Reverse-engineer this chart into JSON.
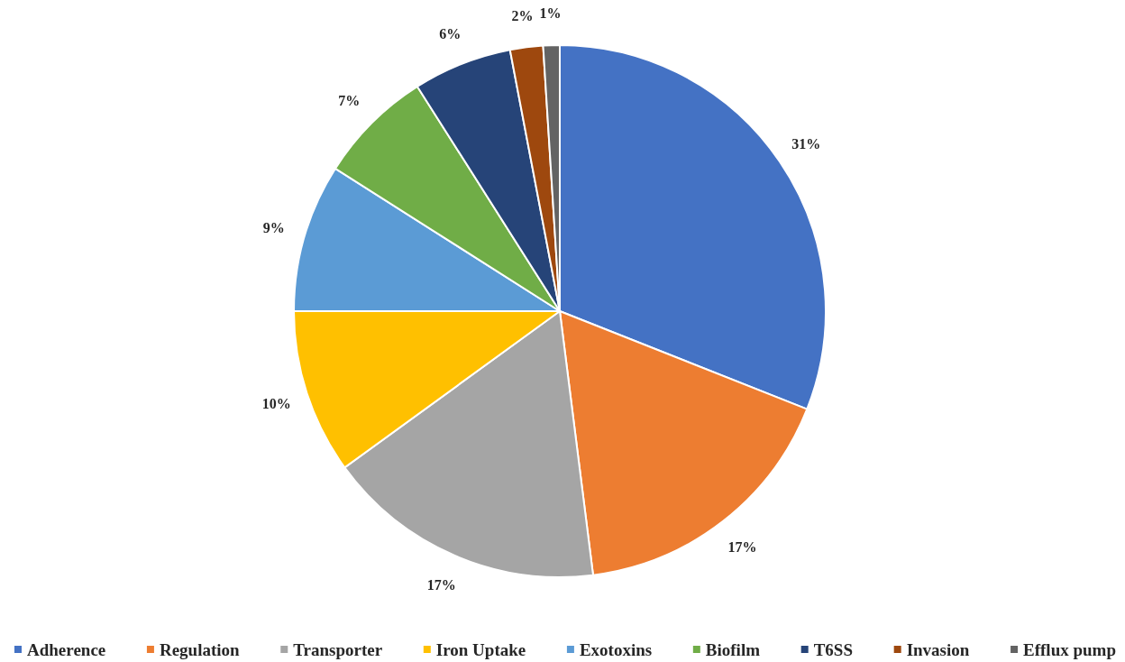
{
  "chart_data": {
    "type": "pie",
    "categories": [
      "Adherence",
      "Regulation",
      "Transporter",
      "Iron Uptake",
      "Exotoxins",
      "Biofilm",
      "T6SS",
      "Invasion",
      "Efflux pump"
    ],
    "values": [
      31,
      17,
      17,
      10,
      9,
      7,
      6,
      2,
      1
    ],
    "colors": [
      "#4472c4",
      "#ed7d31",
      "#a5a5a5",
      "#ffc000",
      "#5b9bd5",
      "#70ad47",
      "#264478",
      "#9e480e",
      "#636363"
    ],
    "value_labels": [
      "31%",
      "17%",
      "17%",
      "10%",
      "9%",
      "7%",
      "6%",
      "2%",
      "1%"
    ],
    "legend": "bottom"
  }
}
